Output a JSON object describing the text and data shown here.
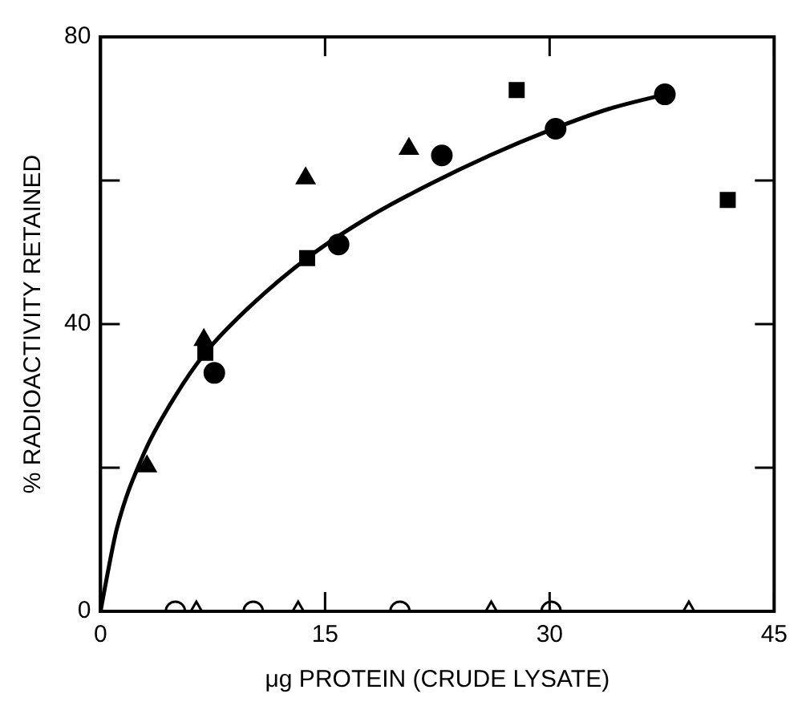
{
  "chart_data": {
    "type": "scatter",
    "xlabel": "μg PROTEIN (CRUDE LYSATE)",
    "ylabel": "% RADIOACTIVITY RETAINED",
    "xlim": [
      0,
      45
    ],
    "ylim": [
      0,
      80
    ],
    "xticks": [
      0,
      15,
      30,
      45
    ],
    "yticks": [
      0,
      {
        "value": 20,
        "label": null
      },
      40,
      {
        "value": 60,
        "label": null
      },
      80
    ],
    "grid": false,
    "legend": false,
    "series": [
      {
        "type": "scatter",
        "marker": "triangle",
        "color": "#000000",
        "x": [
          3.1,
          6.9,
          13.7,
          20.6
        ],
        "values": [
          20.2,
          37.8,
          60.3,
          64.4
        ]
      },
      {
        "type": "scatter",
        "marker": "square",
        "color": "#000000",
        "x": [
          7.0,
          13.8,
          27.8,
          41.9
        ],
        "values": [
          36.0,
          49.2,
          72.6,
          57.3
        ]
      },
      {
        "type": "scatter",
        "marker": "circle",
        "color": "#000000",
        "x": [
          7.6,
          15.9,
          22.8,
          30.4,
          37.7
        ],
        "values": [
          33.2,
          51.1,
          63.5,
          67.2,
          72.0
        ]
      },
      {
        "type": "scatter",
        "marker": "circle",
        "color": "#ffffff",
        "x": [
          5.0,
          10.2,
          20.0,
          30.1
        ],
        "values": [
          0,
          0,
          0,
          0
        ]
      },
      {
        "type": "scatter",
        "marker": "triangle",
        "color": "#ffffff",
        "x": [
          6.4,
          13.2,
          26.1,
          39.3
        ],
        "values": [
          0,
          0,
          0,
          0
        ]
      },
      {
        "type": "line",
        "marker": "none",
        "color": "#000000",
        "x": [
          0,
          0.4,
          1.1,
          2.9,
          5,
          7,
          10,
          14,
          18,
          22,
          26,
          30,
          34,
          37.7
        ],
        "values": [
          0,
          4.5,
          11.6,
          22,
          30,
          36,
          42.5,
          49.5,
          55,
          59.5,
          63.5,
          67,
          70,
          72
        ]
      }
    ]
  }
}
